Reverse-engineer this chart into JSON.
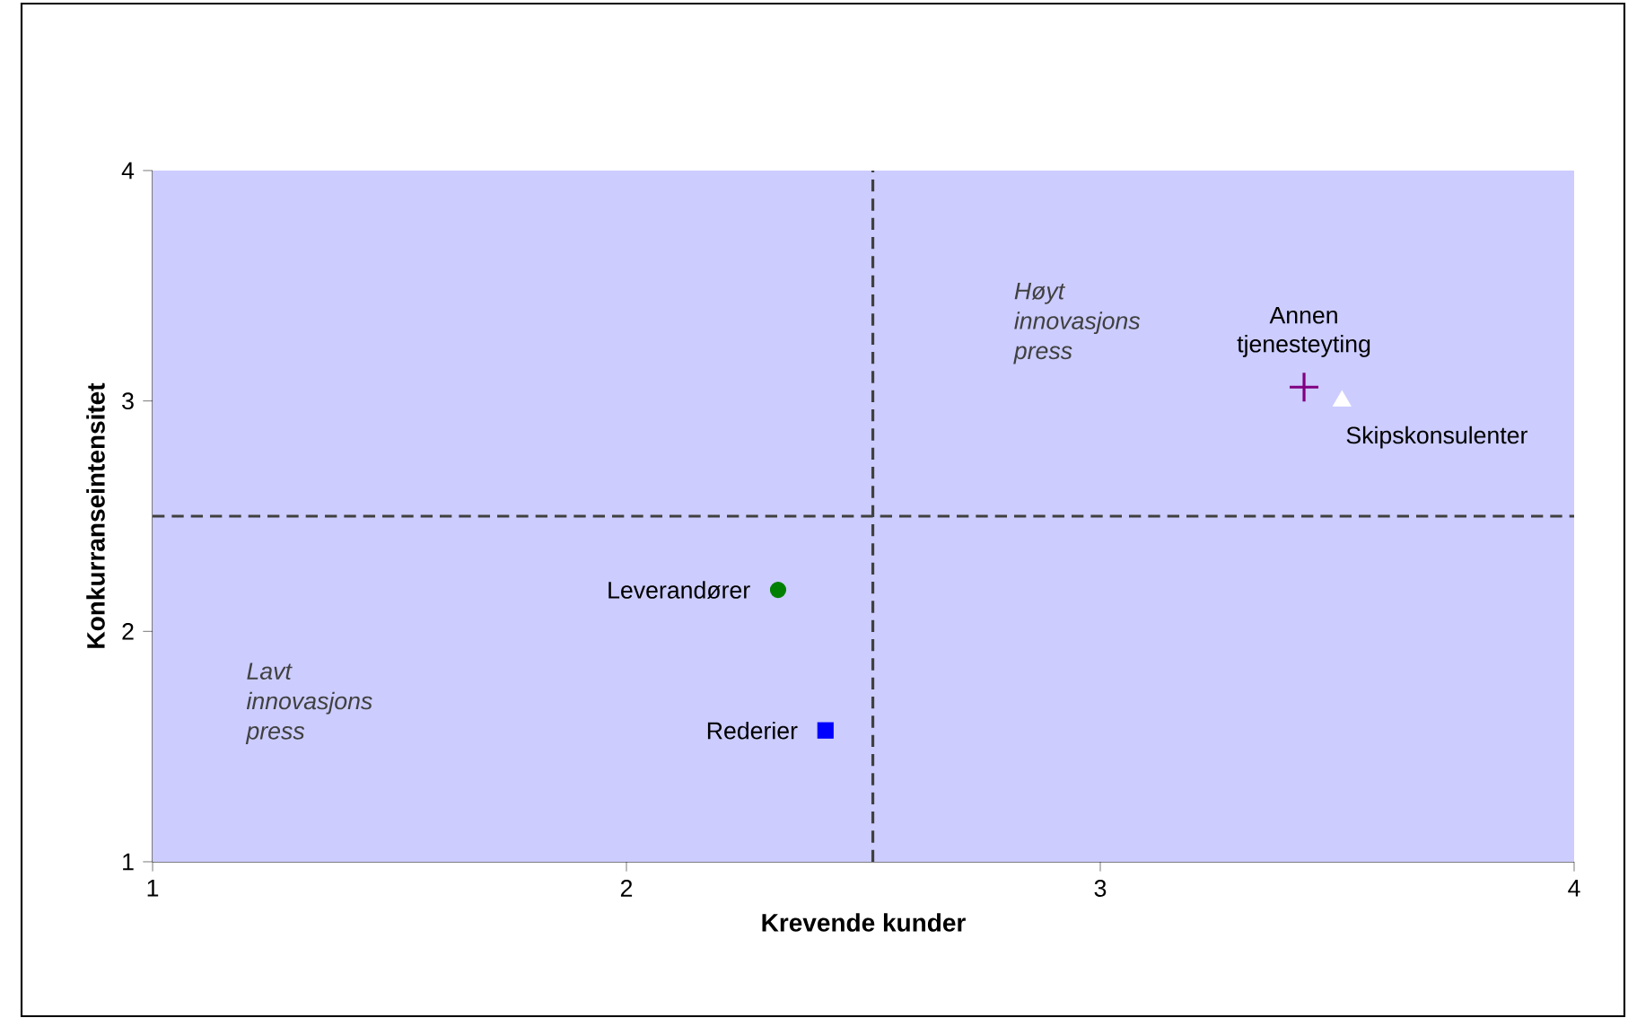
{
  "chart_data": {
    "type": "scatter",
    "xlabel": "Krevende kunder",
    "ylabel": "Konkurranseintensitet",
    "xlim": [
      1,
      4
    ],
    "ylim": [
      1,
      4
    ],
    "xticks": [
      1,
      2,
      3,
      4
    ],
    "yticks": [
      1,
      2,
      3,
      4
    ],
    "grid": false,
    "legend": false,
    "series": [
      {
        "name": "Leverandører",
        "color": "#008000",
        "marker": "circle",
        "x": [
          2.32
        ],
        "values": [
          2.18
        ]
      },
      {
        "name": "Rederier",
        "color": "#0000ff",
        "marker": "square",
        "x": [
          2.42
        ],
        "values": [
          1.57
        ]
      },
      {
        "name": "Annen tjenesteyting",
        "color": "#800080",
        "marker": "cross",
        "x": [
          3.43
        ],
        "values": [
          3.06
        ]
      },
      {
        "name": "Skipskonsulenter",
        "color": "#ffffff",
        "marker": "triangle",
        "x": [
          3.51
        ],
        "values": [
          3.0
        ]
      }
    ],
    "ref_lines": [
      {
        "axis": "x",
        "value": 2.52,
        "color": "#404040",
        "line_style": "dashed"
      },
      {
        "axis": "y",
        "value": 2.5,
        "color": "#404040",
        "line_style": "dashed"
      }
    ],
    "annotations": [
      "Høyt innovasjons press",
      "Lavt innovasjons press"
    ]
  }
}
